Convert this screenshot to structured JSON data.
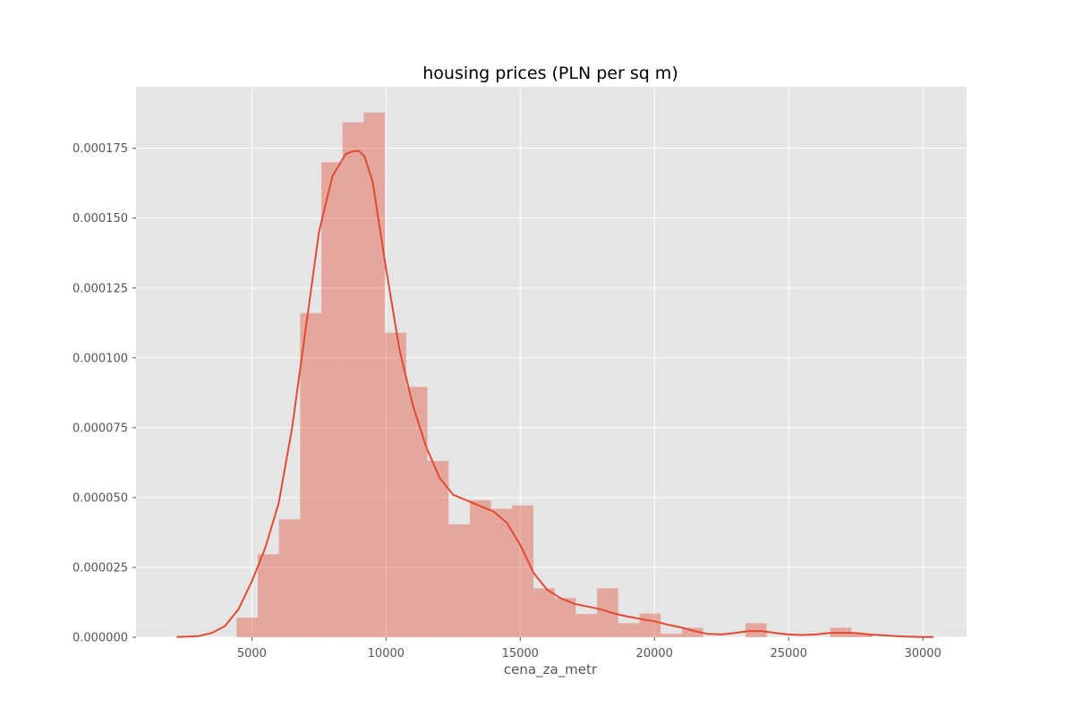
{
  "chart_data": {
    "type": "bar",
    "title": "housing prices (PLN per sq m)",
    "xlabel": "cena_za_metr",
    "ylabel": "",
    "xlim": [
      685,
      31630
    ],
    "ylim": [
      0,
      0.000197
    ],
    "grid": true,
    "xticks": [
      5000,
      10000,
      15000,
      20000,
      25000,
      30000
    ],
    "xtick_labels": [
      "5000",
      "10000",
      "15000",
      "20000",
      "25000",
      "30000"
    ],
    "yticks": [
      0,
      2.5e-05,
      5e-05,
      7.5e-05,
      0.0001,
      0.000125,
      0.00015,
      0.000175
    ],
    "ytick_labels": [
      "0.000000",
      "0.000025",
      "0.000050",
      "0.000075",
      "0.000100",
      "0.000125",
      "0.000150",
      "0.000175"
    ],
    "bin_edges": [
      4430,
      5220,
      6010,
      6800,
      7590,
      8380,
      9170,
      9960,
      10750,
      11540,
      12330,
      13120,
      13910,
      14700,
      15490,
      16280,
      17070,
      17860,
      18650,
      19440,
      20230,
      21020,
      21810,
      22600,
      23390,
      24180,
      24970,
      25760,
      26550,
      27340,
      28130
    ],
    "values": [
      7e-06,
      2.97e-05,
      4.22e-05,
      0.000116,
      0.00017,
      0.0001843,
      0.0001878,
      0.000109,
      8.96e-05,
      6.31e-05,
      4.04e-05,
      4.9e-05,
      4.6e-05,
      4.72e-05,
      1.75e-05,
      1.4e-05,
      8.3e-06,
      1.75e-05,
      5e-06,
      8.5e-06,
      1.2e-06,
      3.4e-06,
      0,
      0,
      5e-06,
      0,
      0,
      0,
      3.4e-06,
      1.2e-06
    ],
    "kde": {
      "x": [
        2200,
        3000,
        3500,
        4000,
        4500,
        5000,
        5500,
        6000,
        6500,
        7000,
        7500,
        8000,
        8500,
        8800,
        9000,
        9200,
        9500,
        10000,
        10500,
        11000,
        11500,
        12000,
        12500,
        13000,
        13500,
        14000,
        14500,
        15000,
        15500,
        16000,
        16500,
        17000,
        17500,
        18000,
        18500,
        19000,
        19500,
        20000,
        20500,
        21000,
        21500,
        22000,
        22500,
        23000,
        23500,
        24000,
        24500,
        25000,
        25500,
        26000,
        26500,
        27000,
        27500,
        28000,
        28500,
        29000,
        29500,
        30000,
        30400
      ],
      "y": [
        1e-07,
        4e-07,
        1.5e-06,
        4e-06,
        1e-05,
        2e-05,
        3.2e-05,
        4.8e-05,
        7.5e-05,
        0.00011,
        0.000145,
        0.000165,
        0.000173,
        0.000174,
        0.000174,
        0.000172,
        0.000163,
        0.000132,
        0.000103,
        8.3e-05,
        6.8e-05,
        5.7e-05,
        5.1e-05,
        4.9e-05,
        4.7e-05,
        4.5e-05,
        4.1e-05,
        3.3e-05,
        2.3e-05,
        1.7e-05,
        1.4e-05,
        1.2e-05,
        1.1e-05,
        1e-05,
        8.5e-06,
        7.4e-06,
        6.5e-06,
        5.7e-06,
        4.5e-06,
        3.5e-06,
        2.2e-06,
        1.2e-06,
        1e-06,
        1.5e-06,
        2.2e-06,
        2.2e-06,
        1.5e-06,
        1e-06,
        8e-07,
        1e-06,
        1.5e-06,
        1.6e-06,
        1.5e-06,
        1e-06,
        7e-07,
        4e-07,
        2e-07,
        1e-07,
        1e-07
      ]
    },
    "colors": {
      "bar": "#e24a33",
      "line": "#e24a33",
      "plot_bg": "#e5e5e5",
      "grid": "#ffffff",
      "figure_bg": "#ffffff"
    }
  }
}
